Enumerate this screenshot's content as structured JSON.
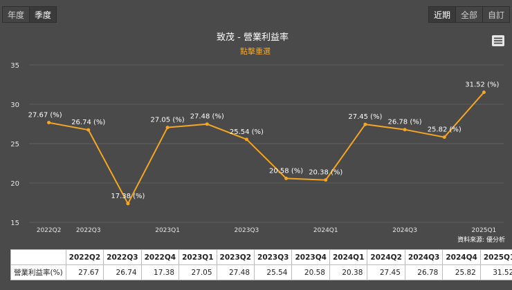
{
  "controls": {
    "period_tabs": [
      {
        "label": "年度",
        "active": false
      },
      {
        "label": "季度",
        "active": true
      }
    ],
    "range_tabs": [
      {
        "label": "近期",
        "active": true
      },
      {
        "label": "全部",
        "active": false
      },
      {
        "label": "自訂",
        "active": false
      }
    ]
  },
  "menu_icon": "hamburger-menu-icon",
  "source_note": "資料來源: 優分析",
  "colors": {
    "background": "#4a4a4a",
    "line": "#f5a623",
    "grid": "#5e5e5e",
    "subtitle": "#f5a623",
    "title": "#ffffff"
  },
  "chart_data": {
    "type": "line",
    "title": "致茂 - 營業利益率",
    "subtitle": "點擊重選",
    "categories": [
      "2022Q2",
      "2022Q3",
      "2022Q4",
      "2023Q1",
      "2023Q2",
      "2023Q3",
      "2023Q4",
      "2024Q1",
      "2024Q2",
      "2024Q3",
      "2024Q4",
      "2025Q1"
    ],
    "x_tick_labels": [
      "2022Q2",
      "2022Q3",
      "",
      "2023Q1",
      "",
      "2023Q3",
      "",
      "2024Q1",
      "",
      "2024Q3",
      "",
      "2025Q1"
    ],
    "series": [
      {
        "values": [
          27.67,
          26.74,
          17.38,
          27.05,
          27.48,
          25.54,
          20.58,
          20.38,
          27.45,
          26.78,
          25.82,
          31.52
        ]
      }
    ],
    "data_labels": [
      "27.67 (%)",
      "26.74 (%)",
      "17.38 (%)",
      "27.05 (%)",
      "27.48 (%)",
      "25.54 (%)",
      "20.58 (%)",
      "20.38 (%)",
      "27.45 (%)",
      "26.78 (%)",
      "25.82 (%)",
      "31.52 (%)"
    ],
    "ylim": [
      15,
      35
    ],
    "yticks": [
      15,
      20,
      25,
      30,
      35
    ],
    "grid": true,
    "legend": "none"
  },
  "table": {
    "corner": "",
    "row_label": "營業利益率(%)",
    "values": [
      "27.67",
      "26.74",
      "17.38",
      "27.05",
      "27.48",
      "25.54",
      "20.58",
      "20.38",
      "27.45",
      "26.78",
      "25.82",
      "31.52"
    ]
  }
}
